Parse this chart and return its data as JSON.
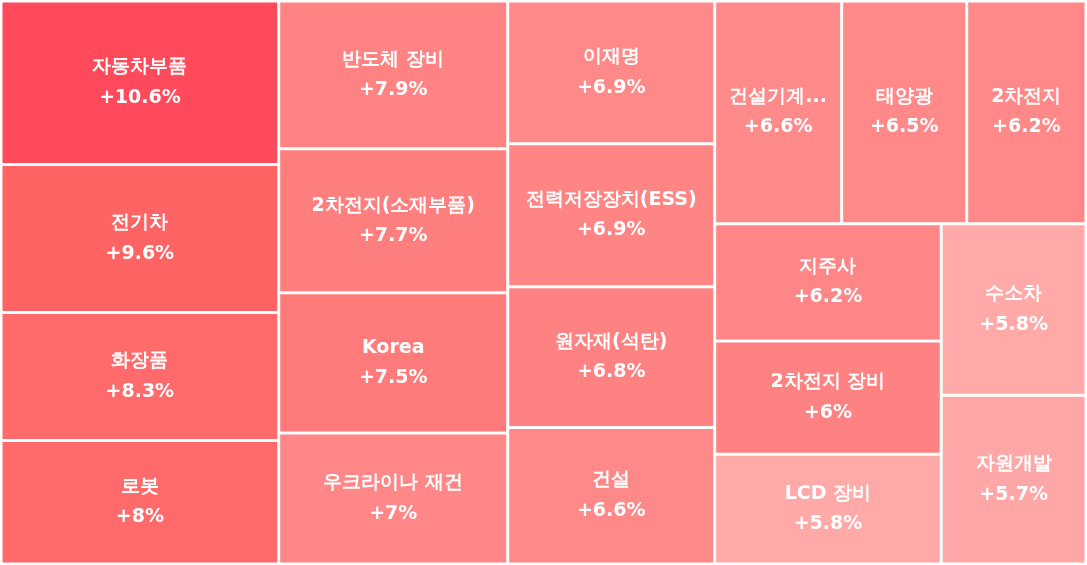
{
  "chart_data": {
    "type": "other",
    "categories": [
      "자동차부품",
      "전기차",
      "화장품",
      "로봇",
      "반도체 장비",
      "2차전지(소재부품)",
      "Korea",
      "우크라이나 재건",
      "이재명",
      "전력저장장치(ESS)",
      "원자재(석탄)",
      "건설",
      "건설기계...",
      "태양광",
      "2차전지",
      "지주사",
      "2차전지 장비",
      "LCD 장비",
      "수소차",
      "자원개발"
    ],
    "values": [
      10.6,
      9.6,
      8.3,
      8,
      7.9,
      7.7,
      7.5,
      7,
      6.9,
      6.9,
      6.8,
      6.6,
      6.6,
      6.5,
      6.2,
      6.2,
      6,
      5.8,
      5.8,
      5.7
    ],
    "value_labels": [
      "+10.6%",
      "+9.6%",
      "+8.3%",
      "+8%",
      "+7.9%",
      "+7.7%",
      "+7.5%",
      "+7%",
      "+6.9%",
      "+6.9%",
      "+6.8%",
      "+6.6%",
      "+6.6%",
      "+6.5%",
      "+6.2%",
      "+6.2%",
      "+6%",
      "+5.8%",
      "+5.8%",
      "+5.7%"
    ],
    "colors": [
      "#ff4a5c",
      "#ff6464",
      "#ff6a6a",
      "#ff6b6b",
      "#ff8383",
      "#ff7e7e",
      "#ff7b7b",
      "#ff8787",
      "#ff8888",
      "#ff8585",
      "#ff8282",
      "#ff8989",
      "#ff8a8a",
      "#ff8989",
      "#ff8888",
      "#ff8686",
      "#ff8282",
      "#ffa9a9",
      "#ffa9a9",
      "#ffa7a7"
    ]
  }
}
